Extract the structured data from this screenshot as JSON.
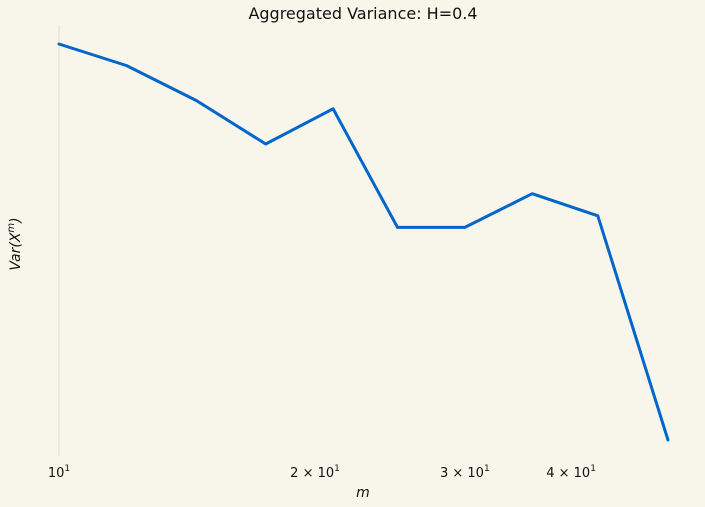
{
  "chart_data": {
    "type": "line",
    "title": "Aggregated Variance: H=0.4",
    "xlabel": "m",
    "ylabel": "Var(X^m)",
    "xscale": "log",
    "yscale": "log",
    "grid": false,
    "legend": "none",
    "x": [
      10,
      12,
      14.5,
      17.5,
      21,
      25,
      30,
      36,
      43,
      52
    ],
    "series": [
      {
        "color": "#0066cc",
        "values": [
          1.0,
          0.94,
          0.85,
          0.75,
          0.83,
          0.59,
          0.59,
          0.65,
          0.61,
          0.32
        ]
      }
    ],
    "xlim": [
      10,
      52
    ],
    "xticks": [
      {
        "value": 10,
        "base": "10",
        "exp": "1"
      },
      {
        "value": 20,
        "base": "2 × 10",
        "exp": "1"
      },
      {
        "value": 30,
        "base": "3 × 10",
        "exp": "1"
      },
      {
        "value": 40,
        "base": "4 × 10",
        "exp": "1"
      }
    ]
  }
}
